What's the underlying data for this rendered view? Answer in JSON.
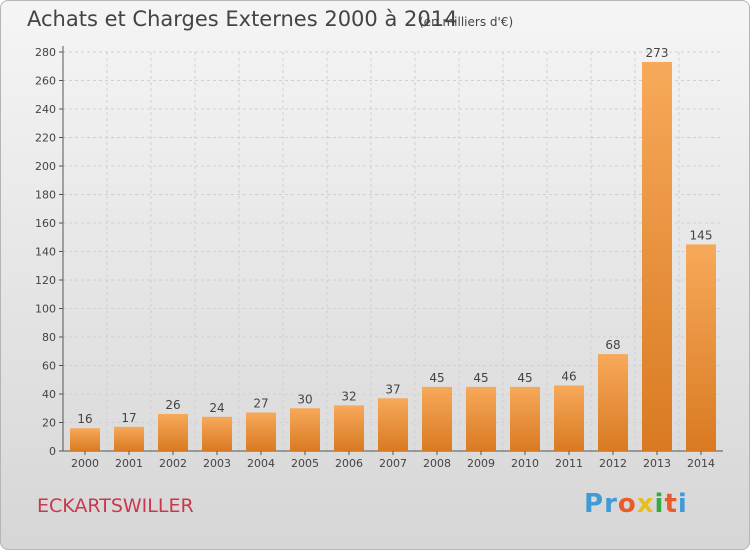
{
  "title": "Achats et Charges Externes 2000 à 2014",
  "unit_note": "(en milliers d'€)",
  "commune": "ECKARTSWILLER",
  "logo": {
    "letters": [
      "P",
      "r",
      "o",
      "x",
      "i",
      "t",
      "i"
    ],
    "colors": [
      "#3f9ad6",
      "#3f9ad6",
      "#e85b2a",
      "#e8bd1f",
      "#37a844",
      "#e85b2a",
      "#3f9ad6"
    ]
  },
  "colors": {
    "bar_light": "#f7a95a",
    "bar_dark": "#d97a22",
    "text": "#444444",
    "commune": "#c8384f"
  },
  "chart_data": {
    "type": "bar",
    "title": "Achats et Charges Externes 2000 à 2014",
    "subtitle": "(en milliers d'€)",
    "categories": [
      "2000",
      "2001",
      "2002",
      "2003",
      "2004",
      "2005",
      "2006",
      "2007",
      "2008",
      "2009",
      "2010",
      "2011",
      "2012",
      "2013",
      "2014"
    ],
    "values": [
      16,
      17,
      26,
      24,
      27,
      30,
      32,
      37,
      45,
      45,
      45,
      46,
      68,
      273,
      145
    ],
    "ylim": [
      0,
      280
    ],
    "yticks": [
      0,
      20,
      40,
      60,
      80,
      100,
      120,
      140,
      160,
      180,
      200,
      220,
      240,
      260,
      280
    ],
    "grid": true,
    "data_labels": true
  }
}
